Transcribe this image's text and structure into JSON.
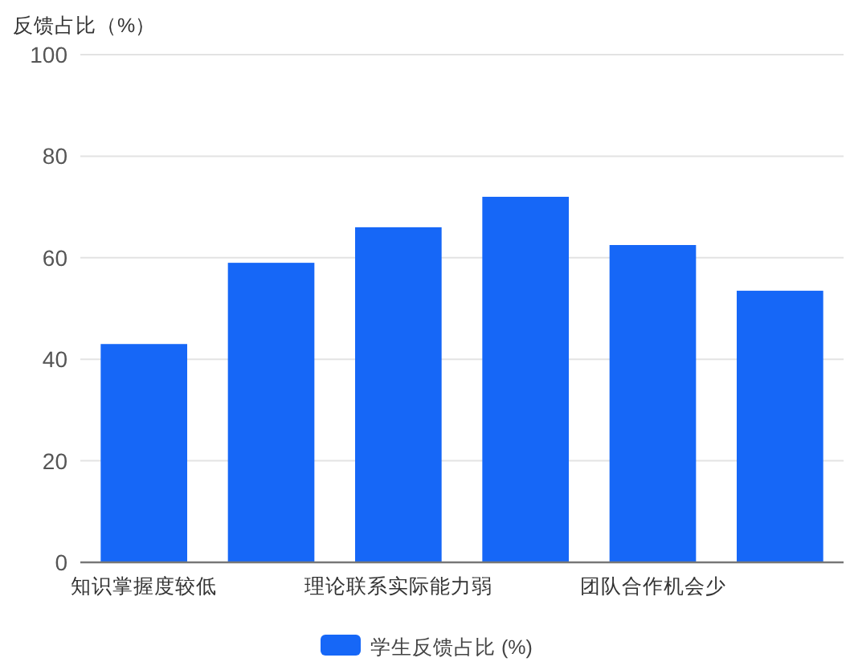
{
  "chart_data": {
    "type": "bar",
    "ylabel": "反馈占比（%）",
    "categories": [
      "知识掌握度较低",
      null,
      "理论联系实际能力弱",
      null,
      "团队合作机会少",
      null
    ],
    "series": [
      {
        "name": "学生反馈占比 (%)",
        "color": "#1667f7",
        "values": [
          43,
          59,
          66,
          72,
          62.5,
          53.5
        ]
      }
    ],
    "ylim": [
      0,
      100
    ],
    "yticks": [
      0,
      20,
      40,
      60,
      80,
      100
    ],
    "grid": "y",
    "legend": "bottom"
  }
}
